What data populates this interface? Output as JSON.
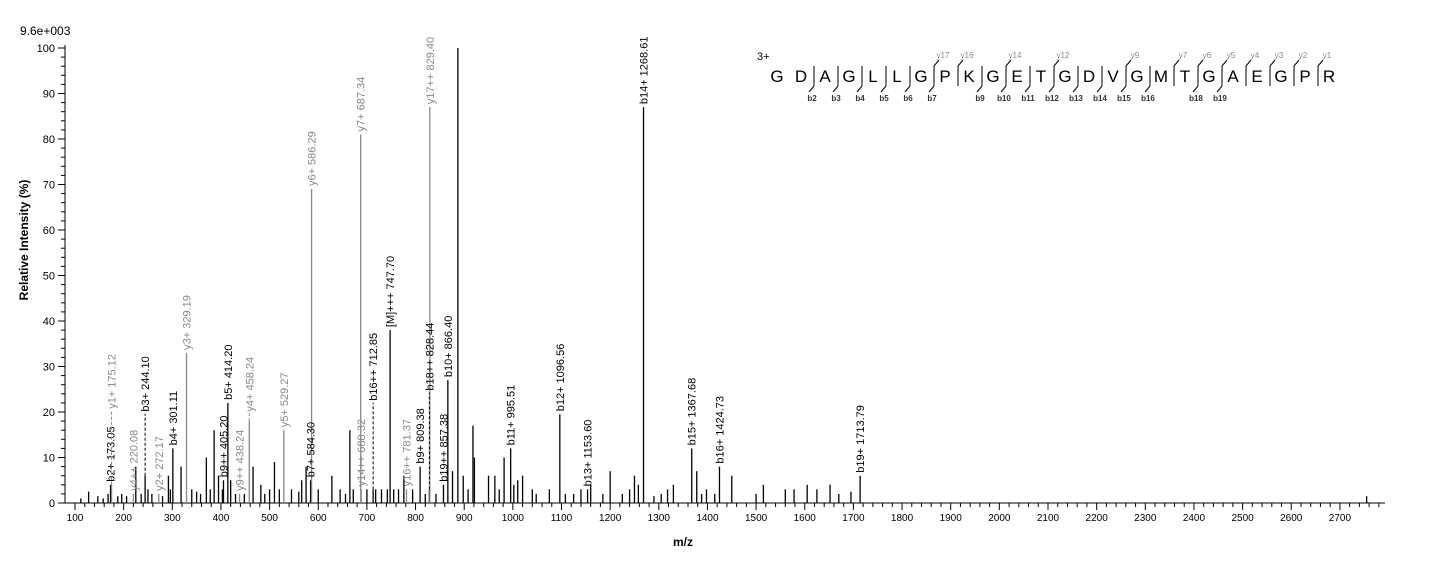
{
  "chart_data": {
    "type": "bar",
    "scale_label": "9.6e+003",
    "xlabel": "m/z",
    "ylabel": "Relative   Intensity (%)",
    "xlim": [
      90,
      2790
    ],
    "ylim": [
      0,
      100
    ],
    "x_ticks": [
      100,
      200,
      300,
      400,
      500,
      600,
      700,
      800,
      900,
      1000,
      1100,
      1200,
      1300,
      1400,
      1500,
      1600,
      1700,
      1800,
      1900,
      2000,
      2100,
      2200,
      2300,
      2400,
      2500,
      2600,
      2700
    ],
    "y_ticks": [
      0,
      10,
      20,
      30,
      40,
      50,
      60,
      70,
      80,
      90,
      100
    ],
    "grid": false,
    "colors": {
      "b_ion": "#000000",
      "y_ion": "#888888",
      "unlabeled": "#000000"
    },
    "labeled_peaks": [
      {
        "mz": 173.05,
        "intensity": 4,
        "label": "b2+ 173.05",
        "ion": "b"
      },
      {
        "mz": 175.12,
        "intensity": 4,
        "label": "y1+ 175.12",
        "ion": "y"
      },
      {
        "mz": 220.08,
        "intensity": 2,
        "label": "y4++ 220.08",
        "ion": "y"
      },
      {
        "mz": 244.1,
        "intensity": 6,
        "label": "b3+ 244.10",
        "ion": "b"
      },
      {
        "mz": 272.17,
        "intensity": 2,
        "label": "y2+ 272.17",
        "ion": "y"
      },
      {
        "mz": 301.11,
        "intensity": 12,
        "label": "b4+ 301.11",
        "ion": "b"
      },
      {
        "mz": 329.19,
        "intensity": 33,
        "label": "y3+ 329.19",
        "ion": "y"
      },
      {
        "mz": 405.2,
        "intensity": 5,
        "label": "b9++ 405.20",
        "ion": "b"
      },
      {
        "mz": 414.2,
        "intensity": 22,
        "label": "b5+ 414.20",
        "ion": "b"
      },
      {
        "mz": 438.24,
        "intensity": 2,
        "label": "y9++ 438.24",
        "ion": "y"
      },
      {
        "mz": 458.24,
        "intensity": 18,
        "label": "y4+ 458.24",
        "ion": "y"
      },
      {
        "mz": 529.27,
        "intensity": 16,
        "label": "y5+ 529.27",
        "ion": "y"
      },
      {
        "mz": 584.3,
        "intensity": 5,
        "label": "b7+ 584.30",
        "ion": "b"
      },
      {
        "mz": 586.29,
        "intensity": 69,
        "label": "y6+ 586.29",
        "ion": "y"
      },
      {
        "mz": 687.34,
        "intensity": 81,
        "label": "y7+ 687.34",
        "ion": "y"
      },
      {
        "mz": 688.32,
        "intensity": 3,
        "label": "y14++ 688.32",
        "ion": "y"
      },
      {
        "mz": 712.85,
        "intensity": 3,
        "label": "b16++ 712.85",
        "ion": "b"
      },
      {
        "mz": 747.7,
        "intensity": 38,
        "label": "[M]+++ 747.70",
        "ion": "b"
      },
      {
        "mz": 781.37,
        "intensity": 3,
        "label": "y16++ 781.37",
        "ion": "y"
      },
      {
        "mz": 809.38,
        "intensity": 8,
        "label": "b9+ 809.38",
        "ion": "b"
      },
      {
        "mz": 828.44,
        "intensity": 3,
        "label": "b18++ 828.44",
        "ion": "b"
      },
      {
        "mz": 829.4,
        "intensity": 87,
        "label": "y17++ 829.40",
        "ion": "y"
      },
      {
        "mz": 857.38,
        "intensity": 4,
        "label": "b19++ 857.38",
        "ion": "b"
      },
      {
        "mz": 866.4,
        "intensity": 27,
        "label": "b10+ 866.40",
        "ion": "b"
      },
      {
        "mz": 995.51,
        "intensity": 12,
        "label": "b11+ 995.51",
        "ion": "b"
      },
      {
        "mz": 1096.56,
        "intensity": 19.5,
        "label": "b12+ 1096.56",
        "ion": "b"
      },
      {
        "mz": 1153.6,
        "intensity": 3,
        "label": "b13+ 1153.60",
        "ion": "b"
      },
      {
        "mz": 1268.61,
        "intensity": 87,
        "label": "b14+ 1268.61",
        "ion": "b"
      },
      {
        "mz": 1367.68,
        "intensity": 12,
        "label": "b15+ 1367.68",
        "ion": "b"
      },
      {
        "mz": 1424.73,
        "intensity": 8,
        "label": "b16+ 1424.73",
        "ion": "b"
      },
      {
        "mz": 1713.79,
        "intensity": 6,
        "label": "b19+ 1713.79",
        "ion": "b"
      }
    ],
    "unlabeled_peaks": [
      [
        112,
        1
      ],
      [
        128,
        2.5
      ],
      [
        147,
        1.5
      ],
      [
        158,
        1
      ],
      [
        168,
        2
      ],
      [
        188,
        1.5
      ],
      [
        196,
        2
      ],
      [
        206,
        1.5
      ],
      [
        225,
        8
      ],
      [
        236,
        2
      ],
      [
        250,
        3
      ],
      [
        258,
        2
      ],
      [
        280,
        1.5
      ],
      [
        292,
        6
      ],
      [
        296,
        3
      ],
      [
        318,
        8
      ],
      [
        340,
        3
      ],
      [
        350,
        2.5
      ],
      [
        358,
        2
      ],
      [
        370,
        10
      ],
      [
        378,
        3
      ],
      [
        386,
        16
      ],
      [
        395,
        6
      ],
      [
        403,
        3
      ],
      [
        420,
        5
      ],
      [
        430,
        2
      ],
      [
        448,
        2
      ],
      [
        466,
        8
      ],
      [
        482,
        4
      ],
      [
        490,
        2
      ],
      [
        500,
        3
      ],
      [
        510,
        9
      ],
      [
        520,
        3
      ],
      [
        545,
        3
      ],
      [
        560,
        2.5
      ],
      [
        566,
        5
      ],
      [
        575,
        8
      ],
      [
        600,
        3
      ],
      [
        628,
        6
      ],
      [
        645,
        3
      ],
      [
        656,
        2
      ],
      [
        665,
        16
      ],
      [
        672,
        3
      ],
      [
        700,
        3
      ],
      [
        718,
        3
      ],
      [
        730,
        3
      ],
      [
        742,
        3
      ],
      [
        755,
        3
      ],
      [
        765,
        3
      ],
      [
        776,
        6
      ],
      [
        794,
        3
      ],
      [
        820,
        2
      ],
      [
        842,
        2
      ],
      [
        876,
        7
      ],
      [
        887,
        100
      ],
      [
        898,
        6
      ],
      [
        908,
        3
      ],
      [
        918,
        17
      ],
      [
        921,
        10
      ],
      [
        950,
        6
      ],
      [
        963,
        6
      ],
      [
        972,
        3
      ],
      [
        982,
        10
      ],
      [
        1002,
        4
      ],
      [
        1010,
        5
      ],
      [
        1020,
        6
      ],
      [
        1040,
        3
      ],
      [
        1048,
        2
      ],
      [
        1075,
        3
      ],
      [
        1108,
        2
      ],
      [
        1125,
        2
      ],
      [
        1140,
        3
      ],
      [
        1160,
        4
      ],
      [
        1185,
        2
      ],
      [
        1200,
        7
      ],
      [
        1225,
        2
      ],
      [
        1240,
        3
      ],
      [
        1250,
        6
      ],
      [
        1258,
        4
      ],
      [
        1290,
        1.5
      ],
      [
        1305,
        2
      ],
      [
        1318,
        3
      ],
      [
        1330,
        4
      ],
      [
        1378,
        7
      ],
      [
        1388,
        2
      ],
      [
        1398,
        3
      ],
      [
        1415,
        2
      ],
      [
        1450,
        6
      ],
      [
        1500,
        2
      ],
      [
        1515,
        4
      ],
      [
        1560,
        3
      ],
      [
        1578,
        3
      ],
      [
        1605,
        4
      ],
      [
        1625,
        3
      ],
      [
        1652,
        4
      ],
      [
        1670,
        2
      ],
      [
        1695,
        2.5
      ],
      [
        2755,
        1.5
      ]
    ],
    "sequence": {
      "charge": "3+",
      "residues": [
        "G",
        "D",
        "A",
        "G",
        "L",
        "L",
        "G",
        "P",
        "K",
        "G",
        "E",
        "T",
        "G",
        "D",
        "V",
        "G",
        "M",
        "T",
        "G",
        "A",
        "E",
        "G",
        "P",
        "R"
      ],
      "b_ions": [
        2,
        3,
        4,
        5,
        6,
        7,
        9,
        10,
        11,
        12,
        13,
        14,
        15,
        16,
        18,
        19
      ],
      "y_ions": [
        17,
        16,
        14,
        12,
        9,
        7,
        6,
        5,
        4,
        3,
        2,
        1
      ]
    }
  }
}
